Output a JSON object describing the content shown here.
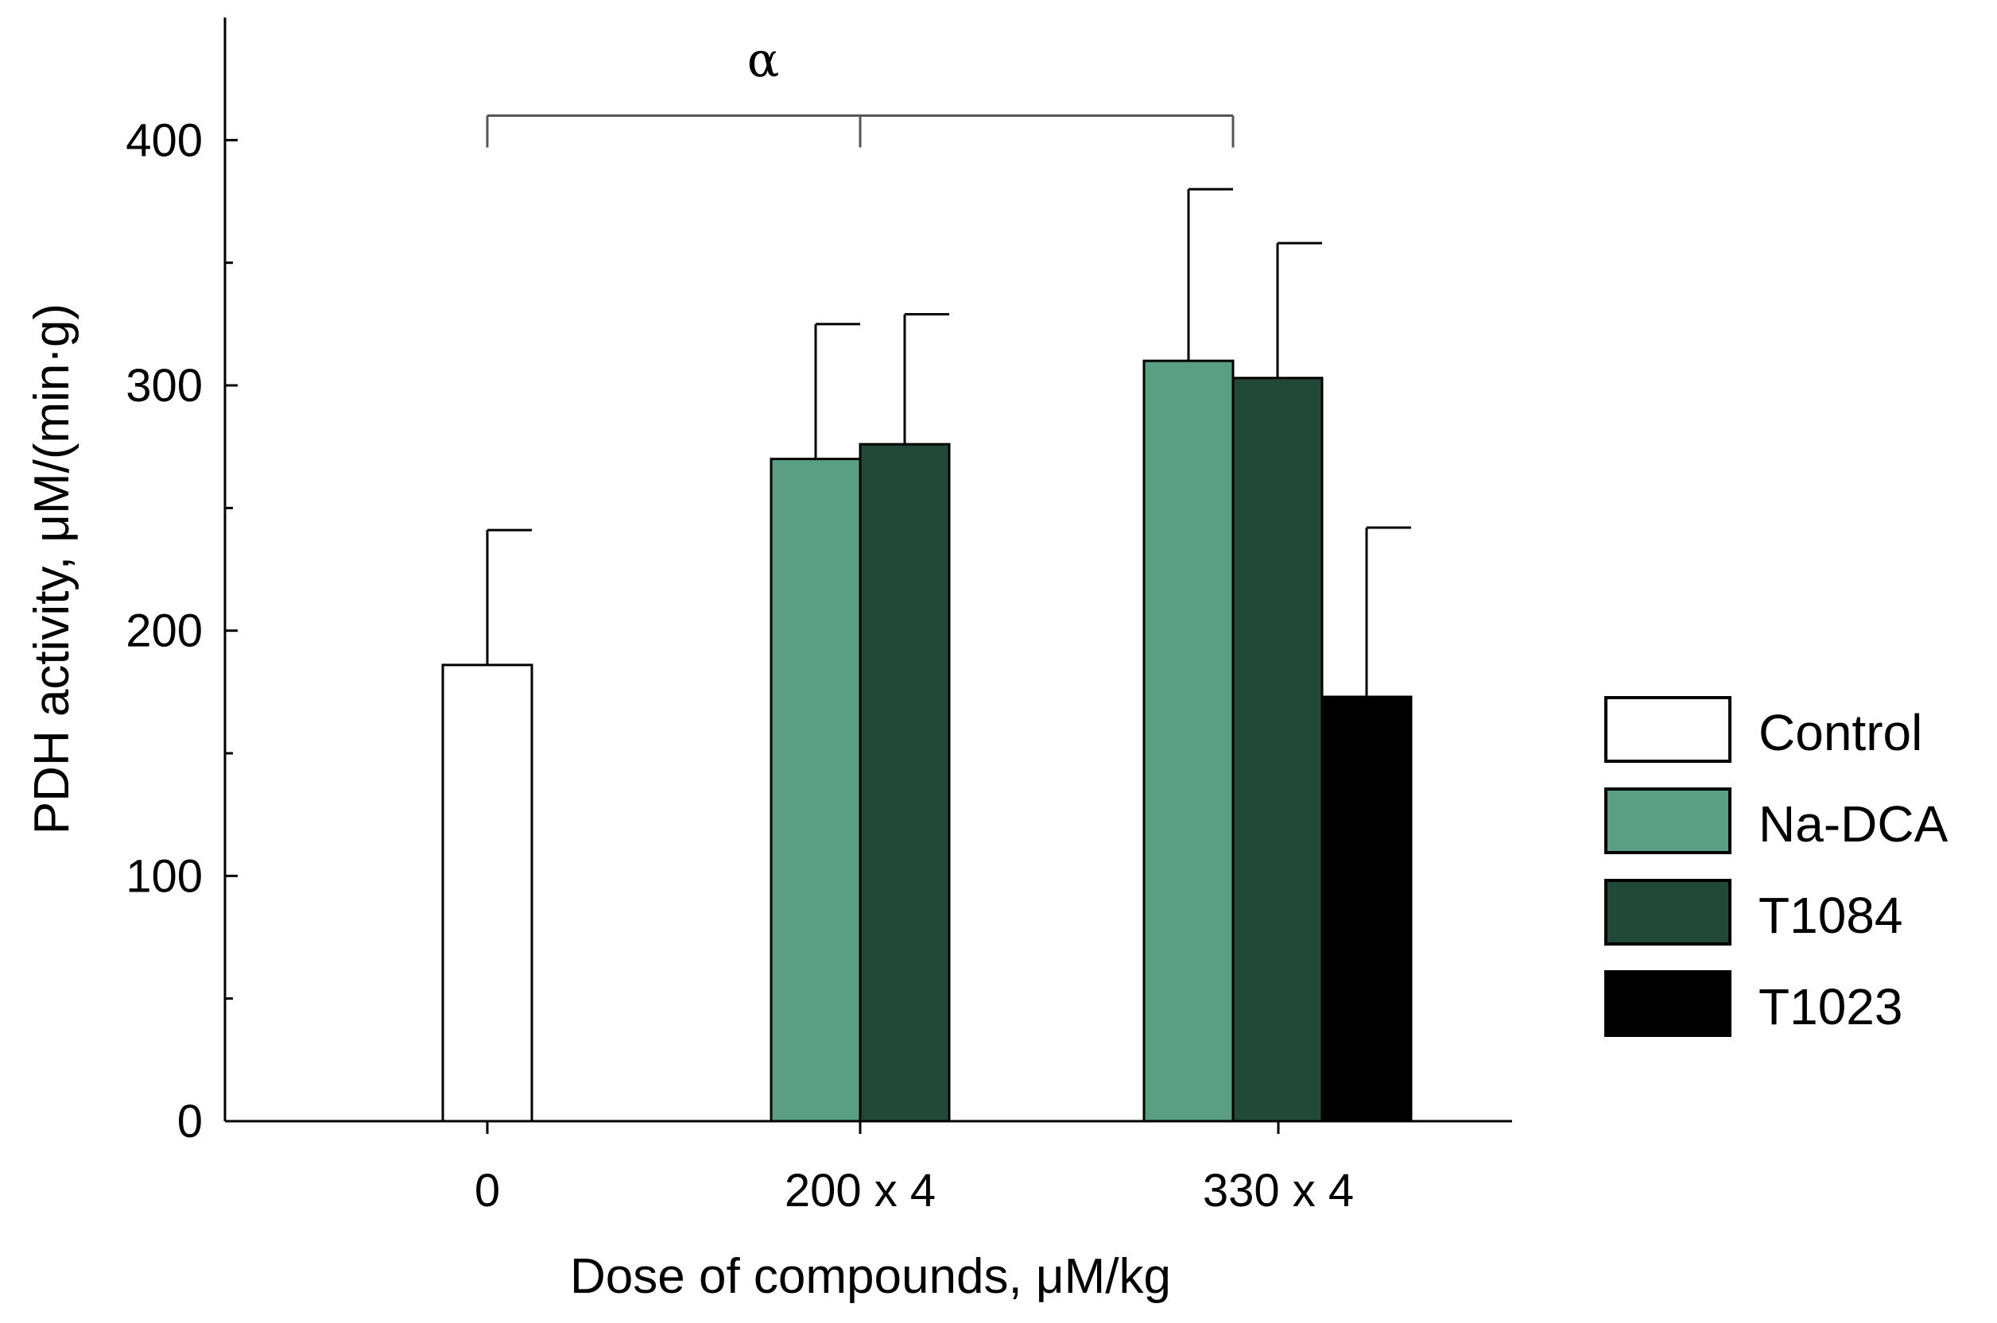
{
  "chart_data": {
    "type": "bar",
    "categories": [
      "0",
      "200 x 4",
      "330 x 4"
    ],
    "xlabel": "Dose of compounds, μM/kg",
    "ylabel": "PDH activity, μM/(min·g)",
    "ylim": [
      0,
      450
    ],
    "yticks": [
      0,
      100,
      200,
      300,
      400
    ],
    "grid": false,
    "legend_position": "right",
    "series": [
      {
        "name": "Control",
        "color": "#ffffff",
        "values": [
          186,
          null,
          null
        ],
        "errors": [
          55,
          null,
          null
        ]
      },
      {
        "name": "Na-DCA",
        "color": "#5a9e83",
        "values": [
          null,
          270,
          310
        ],
        "errors": [
          null,
          55,
          70
        ]
      },
      {
        "name": "T1084",
        "color": "#224838",
        "values": [
          null,
          276,
          303
        ],
        "errors": [
          null,
          53,
          55
        ]
      },
      {
        "name": "T1023",
        "color": "#000000",
        "values": [
          null,
          null,
          173
        ],
        "errors": [
          null,
          null,
          69
        ]
      }
    ],
    "annotations": [
      {
        "text": "α",
        "type": "significance-bracket",
        "spans": [
          "0",
          "200 x 4",
          "330 x 4"
        ]
      }
    ]
  }
}
